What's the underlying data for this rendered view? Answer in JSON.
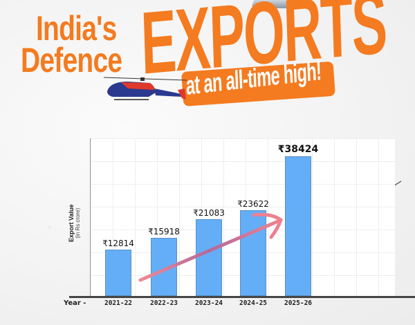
{
  "headline": {
    "line1": "India's",
    "line2": "Defence",
    "big": "EXPORTS",
    "tagline": "at an all-time high!",
    "color_orange": "#f47b20"
  },
  "images": [
    {
      "name": "helicopter-blue-red",
      "position": "under headline"
    },
    {
      "name": "helicopter-grey",
      "position": "right of chart"
    },
    {
      "name": "aircraft-partial",
      "position": "top edge"
    }
  ],
  "chart_data": {
    "type": "bar",
    "title": "India's Defence EXPORTS at an all-time high!",
    "xlabel": "Year -",
    "ylabel": "Export Value",
    "ylabel_sub": "(in Rs crore)",
    "categories": [
      "2021-22",
      "2022-23",
      "2023-24",
      "2024-25",
      "2025-26"
    ],
    "values": [
      12814,
      15918,
      21083,
      23622,
      38424
    ],
    "data_labels": [
      "₹12814",
      "₹15918",
      "₹21083",
      "₹23622",
      "₹38424"
    ],
    "bar_color": "#64aef7",
    "trend_arrow_color": "#e8808a",
    "ylim": [
      0,
      40000
    ],
    "grid": true,
    "legend": null
  }
}
